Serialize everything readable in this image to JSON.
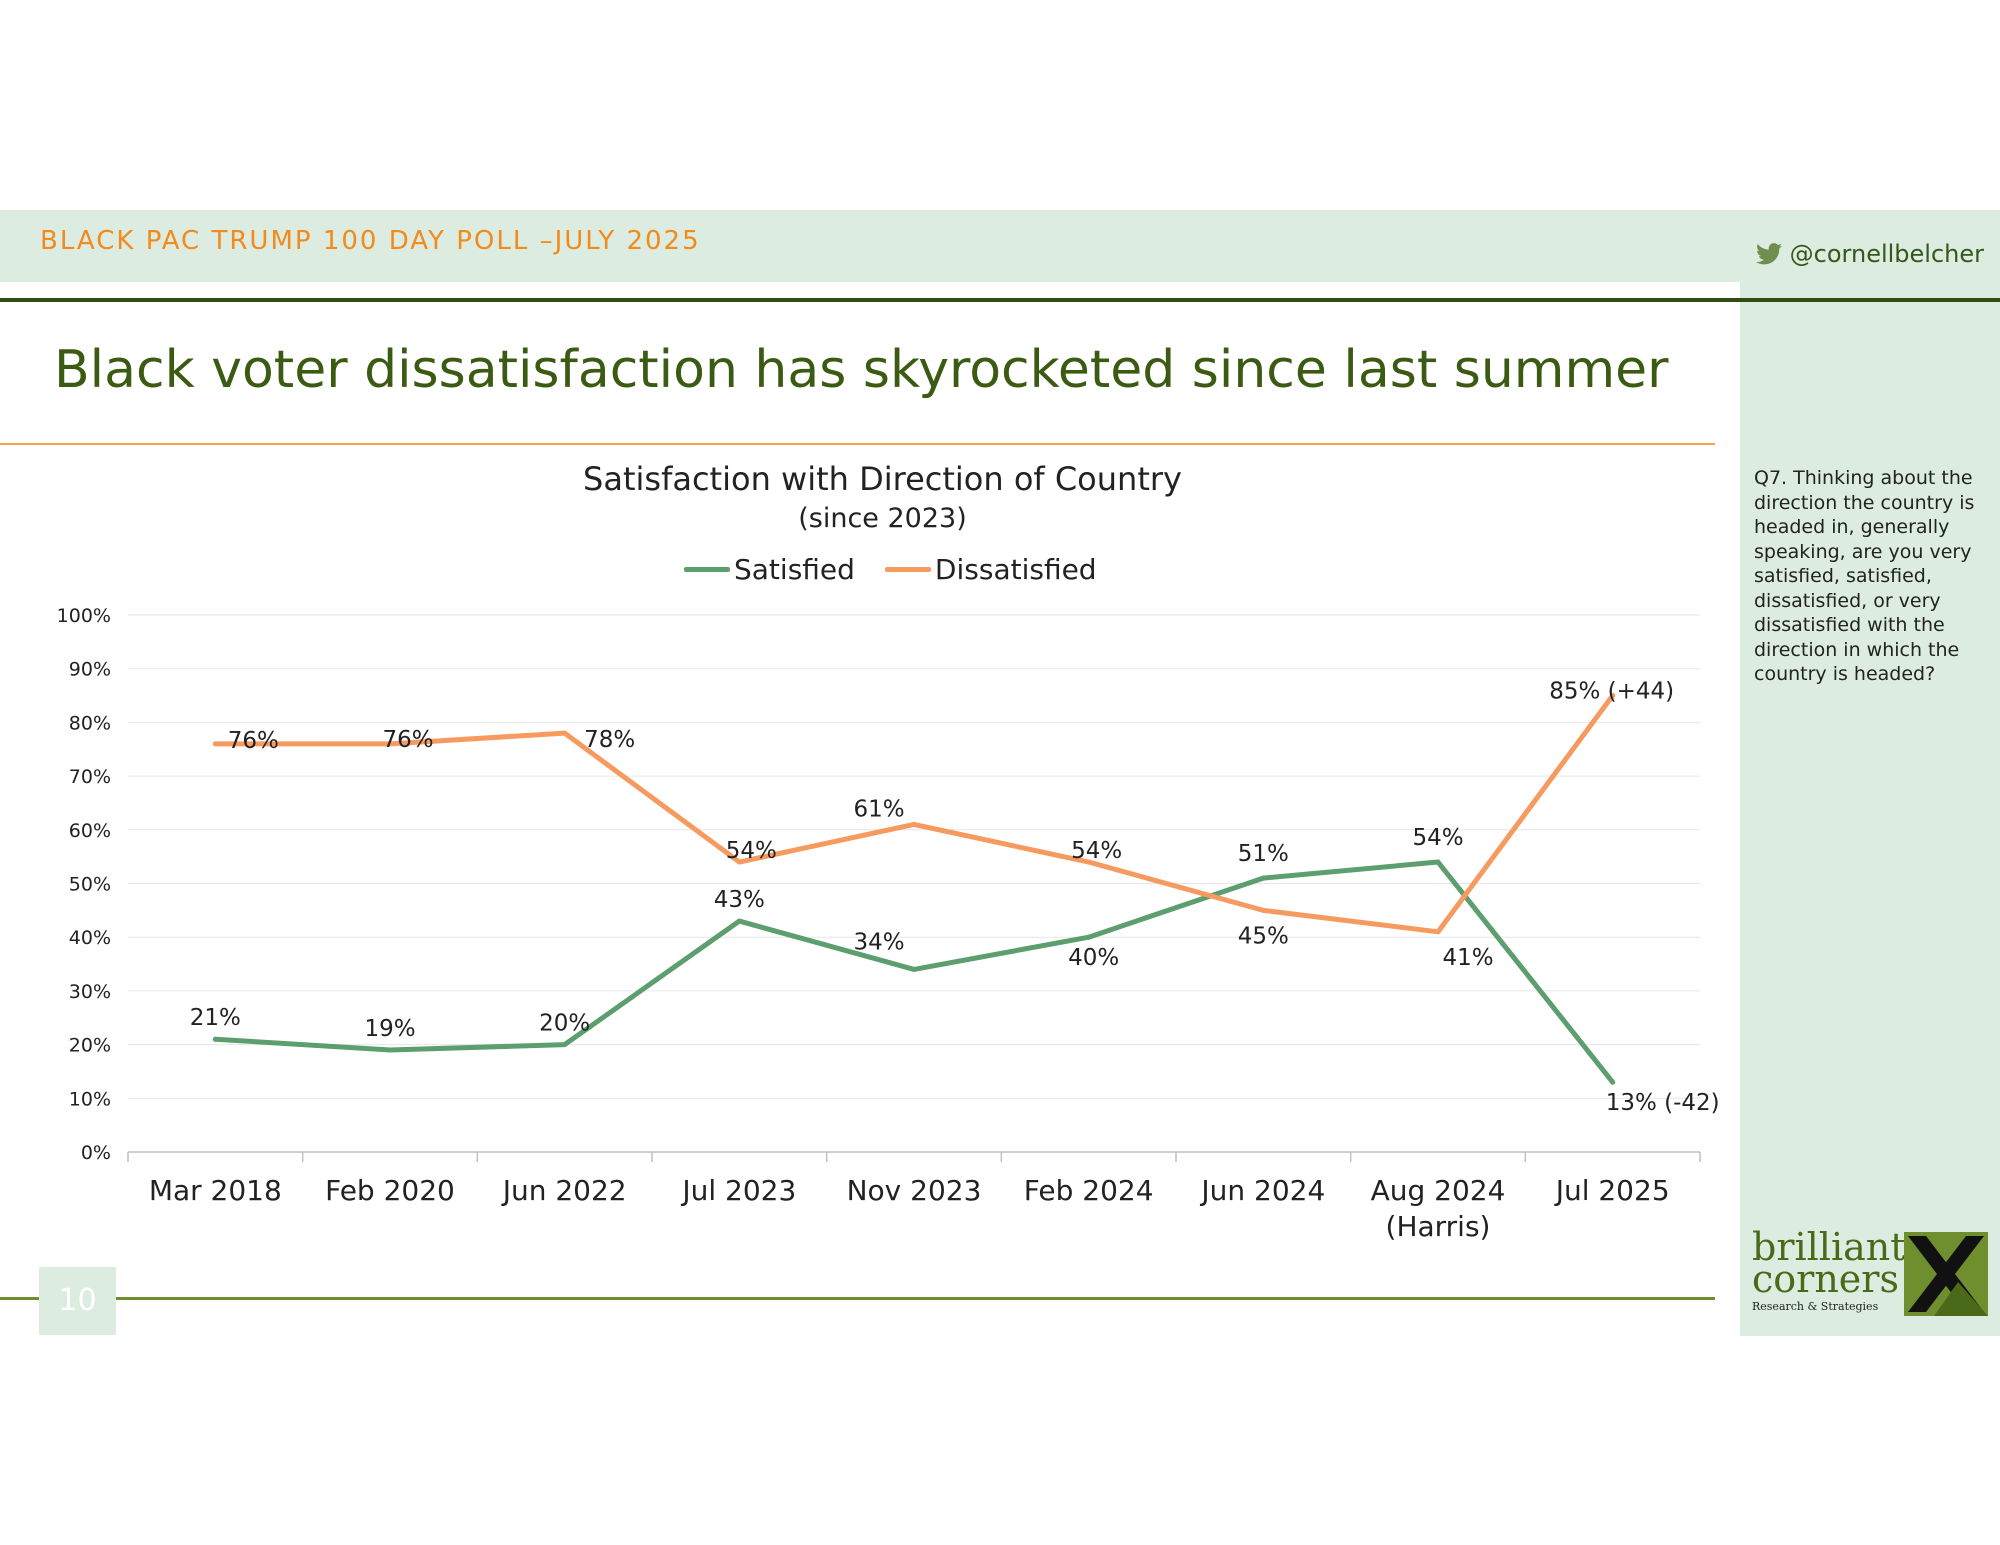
{
  "header": {
    "poll_title": "BLACK PAC TRUMP 100 DAY POLL –JULY 2025",
    "handle": "@cornellbelcher"
  },
  "slide": {
    "title": "Black voter dissatisfaction has skyrocketed since last summer",
    "question": "Q7. Thinking about the direction the country is headed in, generally speaking, are you very satisfied, satisfied, dissatisfied, or very dissatisfied with the direction in which the country is headed?",
    "page_number": "10"
  },
  "logo": {
    "line1": "brilliant",
    "line2": "corners",
    "line3": "Research & Strategies",
    "colors": {
      "green": "#4a6a1a",
      "black": "#111111"
    }
  },
  "colors": {
    "satisfied": "#5d9e6e",
    "dissatisfied": "#f79a5f",
    "header_band": "#dcece0",
    "title_green": "#3b5a12",
    "poll_orange": "#f28a1c"
  },
  "chart_data": {
    "type": "line",
    "title": "Satisfaction with Direction of Country",
    "subtitle": "(since 2023)",
    "categories": [
      "Mar 2018",
      "Feb 2020",
      "Jun 2022",
      "Jul 2023",
      "Nov 2023",
      "Feb 2024",
      "Jun 2024",
      "Aug 2024",
      "Jul 2025"
    ],
    "category_sublabels": [
      "",
      "",
      "",
      "",
      "",
      "",
      "",
      "(Harris)",
      ""
    ],
    "ylim": [
      0,
      100
    ],
    "yticks": [
      "0%",
      "10%",
      "20%",
      "30%",
      "40%",
      "50%",
      "60%",
      "70%",
      "80%",
      "90%",
      "100%"
    ],
    "grid": true,
    "legend_position": "top",
    "series": [
      {
        "name": "Satisfied",
        "values": [
          21,
          19,
          20,
          43,
          34,
          40,
          51,
          54,
          13
        ],
        "labels": [
          "21%",
          "19%",
          "20%",
          "43%",
          "34%",
          "40%",
          "51%",
          "54%",
          "13% (-42)"
        ]
      },
      {
        "name": "Dissatisfied",
        "values": [
          76,
          76,
          78,
          54,
          61,
          54,
          45,
          41,
          85
        ],
        "labels": [
          "76%",
          "76%",
          "78%",
          "54%",
          "61%",
          "54%",
          "45%",
          "41%",
          "85% (+44)"
        ]
      }
    ]
  }
}
